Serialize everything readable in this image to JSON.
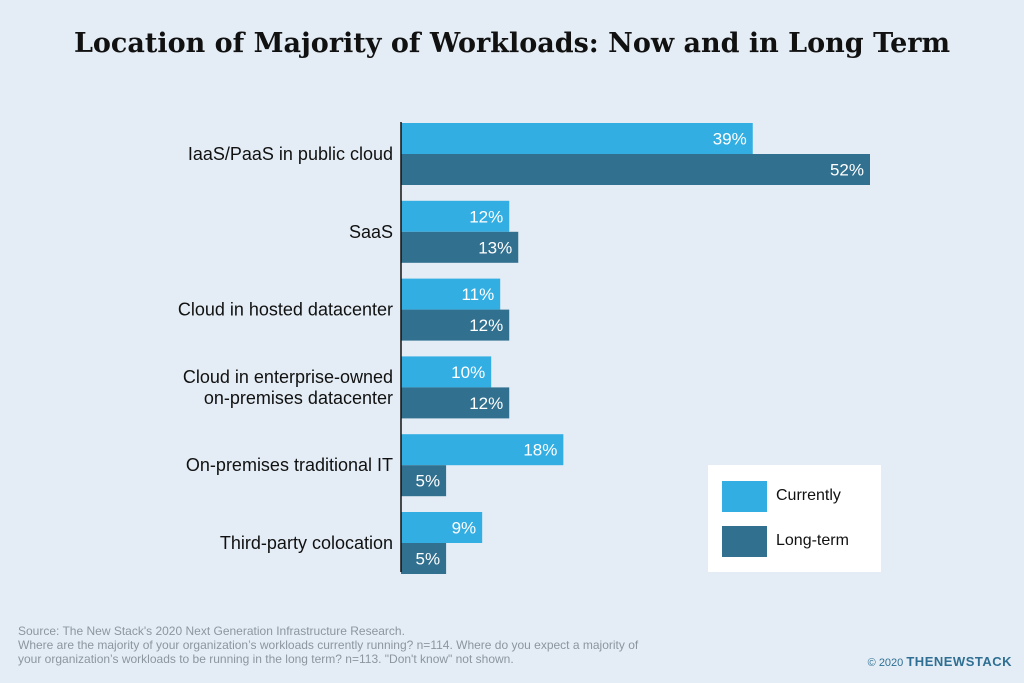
{
  "chart_data": {
    "type": "bar",
    "orientation": "horizontal",
    "title": "Location of Majority of Workloads: Now and in Long Term",
    "categories": [
      [
        "IaaS/PaaS in public cloud"
      ],
      [
        "SaaS"
      ],
      [
        "Cloud in hosted datacenter"
      ],
      [
        "Cloud in enterprise-owned",
        "on-premises datacenter"
      ],
      [
        "On-premises traditional IT"
      ],
      [
        "Third-party colocation"
      ]
    ],
    "series": [
      {
        "name": "Currently",
        "color": "#33aee3",
        "values": [
          39,
          12,
          11,
          10,
          18,
          9
        ],
        "labels": [
          "39%",
          "12%",
          "11%",
          "10%",
          "18%",
          "9%"
        ]
      },
      {
        "name": "Long-term",
        "color": "#31708f",
        "values": [
          52,
          13,
          12,
          12,
          5,
          5
        ],
        "labels": [
          "52%",
          "13%",
          "12%",
          "12%",
          "5%",
          "5%"
        ]
      }
    ],
    "xlim": [
      0,
      52
    ],
    "unit": "%",
    "grid": false,
    "legend_position": "bottom-right"
  },
  "source_lines": [
    "Source: The New Stack's 2020 Next Generation Infrastructure Research.",
    "Where are the majority of your organization’s workloads currently running? n=114. Where do you expect a majority of",
    "your organization’s workloads to be running in the long term? n=113. \"Don't know\" not shown."
  ],
  "credit": {
    "copyright": "© 2020",
    "brand": "THENEWSTACK"
  }
}
